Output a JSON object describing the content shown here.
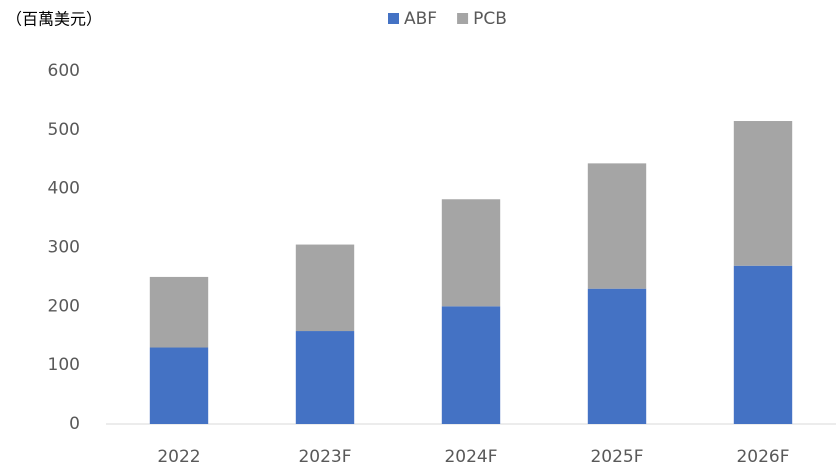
{
  "chart_data": {
    "type": "bar",
    "stacked": true,
    "unit_label": "（百萬美元）",
    "categories": [
      "2022",
      "2023F",
      "2024F",
      "2025F",
      "2026F"
    ],
    "series": [
      {
        "name": "ABF",
        "color": "#4472c4",
        "values": [
          130,
          158,
          200,
          230,
          269
        ]
      },
      {
        "name": "PCB",
        "color": "#a5a5a5",
        "values": [
          120,
          147,
          182,
          213,
          246
        ]
      }
    ],
    "ylim": [
      0,
      600
    ],
    "yticks": [
      0,
      100,
      200,
      300,
      400,
      500,
      600
    ],
    "grid": false,
    "legend": "top"
  }
}
